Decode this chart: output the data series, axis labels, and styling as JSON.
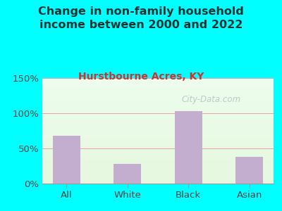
{
  "title": "Change in non-family household\nincome between 2000 and 2022",
  "subtitle": "Hurstbourne Acres, KY",
  "categories": [
    "All",
    "White",
    "Black",
    "Asian"
  ],
  "values": [
    68,
    28,
    103,
    38
  ],
  "bar_color": "#c4aed0",
  "title_color": "#1a3333",
  "subtitle_color": "#cc3333",
  "background_outer": "#00ffff",
  "ylim": [
    0,
    150
  ],
  "yticks": [
    0,
    50,
    100,
    150
  ],
  "ytick_labels": [
    "0%",
    "50%",
    "100%",
    "150%"
  ],
  "watermark": "City-Data.com",
  "grid_color": "#e8a0a8",
  "grid_linewidth": 0.7,
  "title_fontsize": 11.5,
  "subtitle_fontsize": 10,
  "tick_fontsize": 9.5,
  "tick_color": "#444444"
}
